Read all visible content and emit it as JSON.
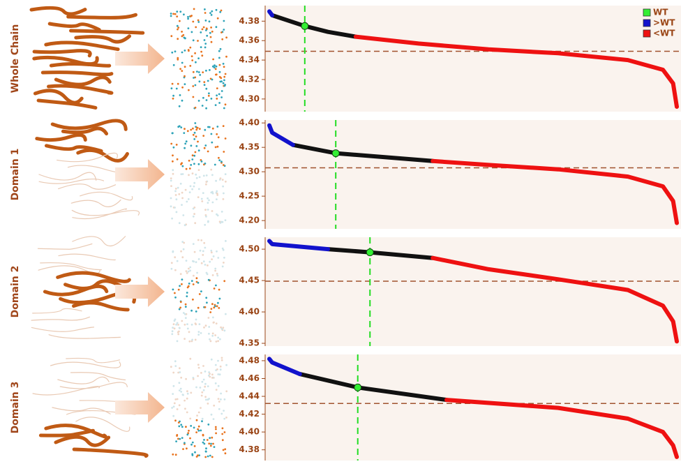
{
  "chart_data": [
    {
      "type": "scatter",
      "label": "Whole Chain",
      "xlim": [
        0,
        1000
      ],
      "ylim": [
        4.287,
        4.396
      ],
      "yticks": [
        {
          "value": 4.3,
          "label": "4.30"
        },
        4.32,
        4.34,
        4.36,
        4.38
      ],
      "reference_line": 4.349,
      "series": [
        {
          "name": "WT",
          "color": "#33ee33",
          "x": [
            87
          ],
          "values": [
            4.375
          ]
        },
        {
          "name": ">WT",
          "color": "#1212cc",
          "x": [
            0,
            7
          ],
          "values": [
            4.39,
            4.386
          ]
        },
        {
          "name": "<WT",
          "color": "#ee1111",
          "x": [
            212,
            366,
            538,
            709,
            880,
            966,
            991,
            1000
          ],
          "values": [
            4.364,
            4.357,
            4.351,
            4.347,
            4.34,
            4.33,
            4.316,
            4.292
          ]
        },
        {
          "color": "#111111",
          "x": [
            7,
            87,
            144,
            212
          ],
          "values": [
            4.386,
            4.375,
            4.369,
            4.364
          ]
        }
      ]
    },
    {
      "type": "scatter",
      "label": "Domain 1",
      "xlim": [
        0,
        1000
      ],
      "ylim": [
        4.183,
        4.406
      ],
      "yticks": [
        {
          "value": 4.2,
          "label": "4.20"
        },
        4.25,
        {
          "value": 4.3,
          "label": "4.30"
        },
        4.35,
        {
          "value": 4.4,
          "label": "4.40"
        }
      ],
      "reference_line": 4.308,
      "series": [
        {
          "color": "#33ee33",
          "x": [
            163
          ],
          "values": [
            4.338
          ]
        },
        {
          "color": "#1212cc",
          "x": [
            0,
            7,
            58
          ],
          "values": [
            4.395,
            4.38,
            4.355
          ]
        },
        {
          "color": "#ee1111",
          "x": [
            401,
            538,
            709,
            880,
            966,
            991,
            1000
          ],
          "values": [
            4.322,
            4.314,
            4.305,
            4.29,
            4.27,
            4.24,
            4.195
          ]
        },
        {
          "color": "#111111",
          "x": [
            58,
            163,
            401
          ],
          "values": [
            4.355,
            4.338,
            4.322
          ]
        }
      ]
    },
    {
      "type": "scatter",
      "label": "Domain 2",
      "xlim": [
        0,
        1000
      ],
      "ylim": [
        4.3456,
        4.519
      ],
      "yticks": [
        4.35,
        {
          "value": 4.4,
          "label": "4.40"
        },
        4.45,
        {
          "value": 4.5,
          "label": "4.50"
        }
      ],
      "reference_line": 4.449,
      "series": [
        {
          "color": "#33ee33",
          "x": [
            247
          ],
          "values": [
            4.495
          ]
        },
        {
          "color": "#1212cc",
          "x": [
            0,
            7,
            144
          ],
          "values": [
            4.513,
            4.508,
            4.5
          ]
        },
        {
          "color": "#ee1111",
          "x": [
            401,
            538,
            709,
            880,
            966,
            991,
            1000
          ],
          "values": [
            4.486,
            4.468,
            4.452,
            4.435,
            4.41,
            4.385,
            4.353
          ]
        },
        {
          "color": "#111111",
          "x": [
            144,
            247,
            401
          ],
          "values": [
            4.5,
            4.495,
            4.486
          ]
        }
      ]
    },
    {
      "type": "scatter",
      "label": "Domain 3",
      "xlim": [
        0,
        1000
      ],
      "ylim": [
        4.368,
        4.487
      ],
      "yticks": [
        4.38,
        {
          "value": 4.4,
          "label": "4.40"
        },
        4.42,
        4.44,
        4.46,
        4.48
      ],
      "reference_line": 4.432,
      "series": [
        {
          "color": "#33ee33",
          "x": [
            217
          ],
          "values": [
            4.45
          ]
        },
        {
          "color": "#1212cc",
          "x": [
            0,
            7,
            75
          ],
          "values": [
            4.482,
            4.478,
            4.465
          ]
        },
        {
          "color": "#ee1111",
          "x": [
            435,
            709,
            880,
            966,
            991,
            1000
          ],
          "values": [
            4.436,
            4.427,
            4.415,
            4.4,
            4.385,
            4.372
          ]
        },
        {
          "color": "#111111",
          "x": [
            75,
            217,
            435
          ],
          "values": [
            4.465,
            4.45,
            4.436
          ]
        }
      ]
    }
  ]
}
